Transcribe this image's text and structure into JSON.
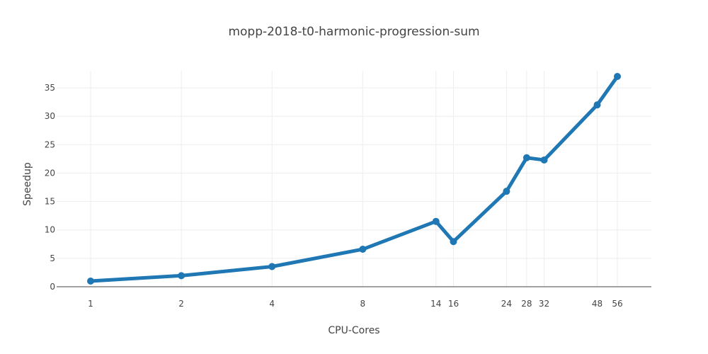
{
  "chart_data": {
    "type": "line",
    "title": "mopp-2018-t0-harmonic-progression-sum",
    "xlabel": "CPU-Cores",
    "ylabel": "Speedup",
    "x_scale": "log",
    "x_ticks": [
      1,
      2,
      4,
      8,
      14,
      16,
      24,
      28,
      32,
      48,
      56
    ],
    "y_ticks": [
      0,
      5,
      10,
      15,
      20,
      25,
      30,
      35
    ],
    "ylim": [
      0,
      38
    ],
    "grid": true,
    "legend": "none",
    "series": [
      {
        "color": "#1f77b4",
        "x": [
          1,
          2,
          4,
          8,
          14,
          16,
          24,
          28,
          32,
          48,
          56
        ],
        "y": [
          1.0,
          1.95,
          3.55,
          6.6,
          11.5,
          7.95,
          16.8,
          22.7,
          22.3,
          32.0,
          37.0
        ]
      }
    ]
  }
}
